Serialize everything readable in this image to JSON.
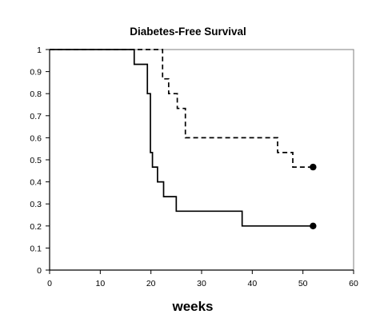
{
  "chart_data": {
    "type": "line",
    "title": "Diabetes-Free Survival",
    "xlabel": "weeks",
    "ylabel": "",
    "xlim": [
      0,
      60
    ],
    "ylim": [
      0,
      1
    ],
    "x_ticks": [
      0,
      10,
      20,
      30,
      40,
      50,
      60
    ],
    "y_ticks": [
      0,
      0.1,
      0.2,
      0.3,
      0.4,
      0.5,
      0.6,
      0.7,
      0.8,
      0.9,
      1
    ],
    "x_tick_labels": [
      "0",
      "10",
      "20",
      "30",
      "40",
      "50",
      "60"
    ],
    "y_tick_labels": [
      "0",
      "0.1",
      "0.2",
      "0.3",
      "0.4",
      "0.5",
      "0.6",
      "0.7",
      "0.8",
      "0.9",
      "1"
    ],
    "grid": false,
    "legend": "none",
    "colors": {
      "line": "#000000",
      "axis": "#000000",
      "tick_label": "#000000",
      "background": "#ffffff"
    },
    "series": [
      {
        "style": "dashed",
        "step": true,
        "end_marker": "filled-circle",
        "points": [
          [
            0,
            1
          ],
          [
            22.3,
            1
          ],
          [
            22.3,
            0.867
          ],
          [
            23.5,
            0.867
          ],
          [
            23.5,
            0.8
          ],
          [
            25.2,
            0.8
          ],
          [
            25.2,
            0.733
          ],
          [
            26.8,
            0.733
          ],
          [
            26.8,
            0.6
          ],
          [
            45,
            0.6
          ],
          [
            45,
            0.533
          ],
          [
            48,
            0.533
          ],
          [
            48,
            0.467
          ],
          [
            52,
            0.467
          ]
        ]
      },
      {
        "style": "solid",
        "step": true,
        "end_marker": "filled-circle",
        "points": [
          [
            0,
            1
          ],
          [
            16.7,
            1
          ],
          [
            16.7,
            0.933
          ],
          [
            19.3,
            0.933
          ],
          [
            19.3,
            0.8
          ],
          [
            19.9,
            0.8
          ],
          [
            19.9,
            0.533
          ],
          [
            20.3,
            0.533
          ],
          [
            20.3,
            0.467
          ],
          [
            21.3,
            0.467
          ],
          [
            21.3,
            0.4
          ],
          [
            22.5,
            0.4
          ],
          [
            22.5,
            0.333
          ],
          [
            25,
            0.333
          ],
          [
            25,
            0.267
          ],
          [
            38,
            0.267
          ],
          [
            38,
            0.2
          ],
          [
            52,
            0.2
          ]
        ]
      }
    ]
  }
}
